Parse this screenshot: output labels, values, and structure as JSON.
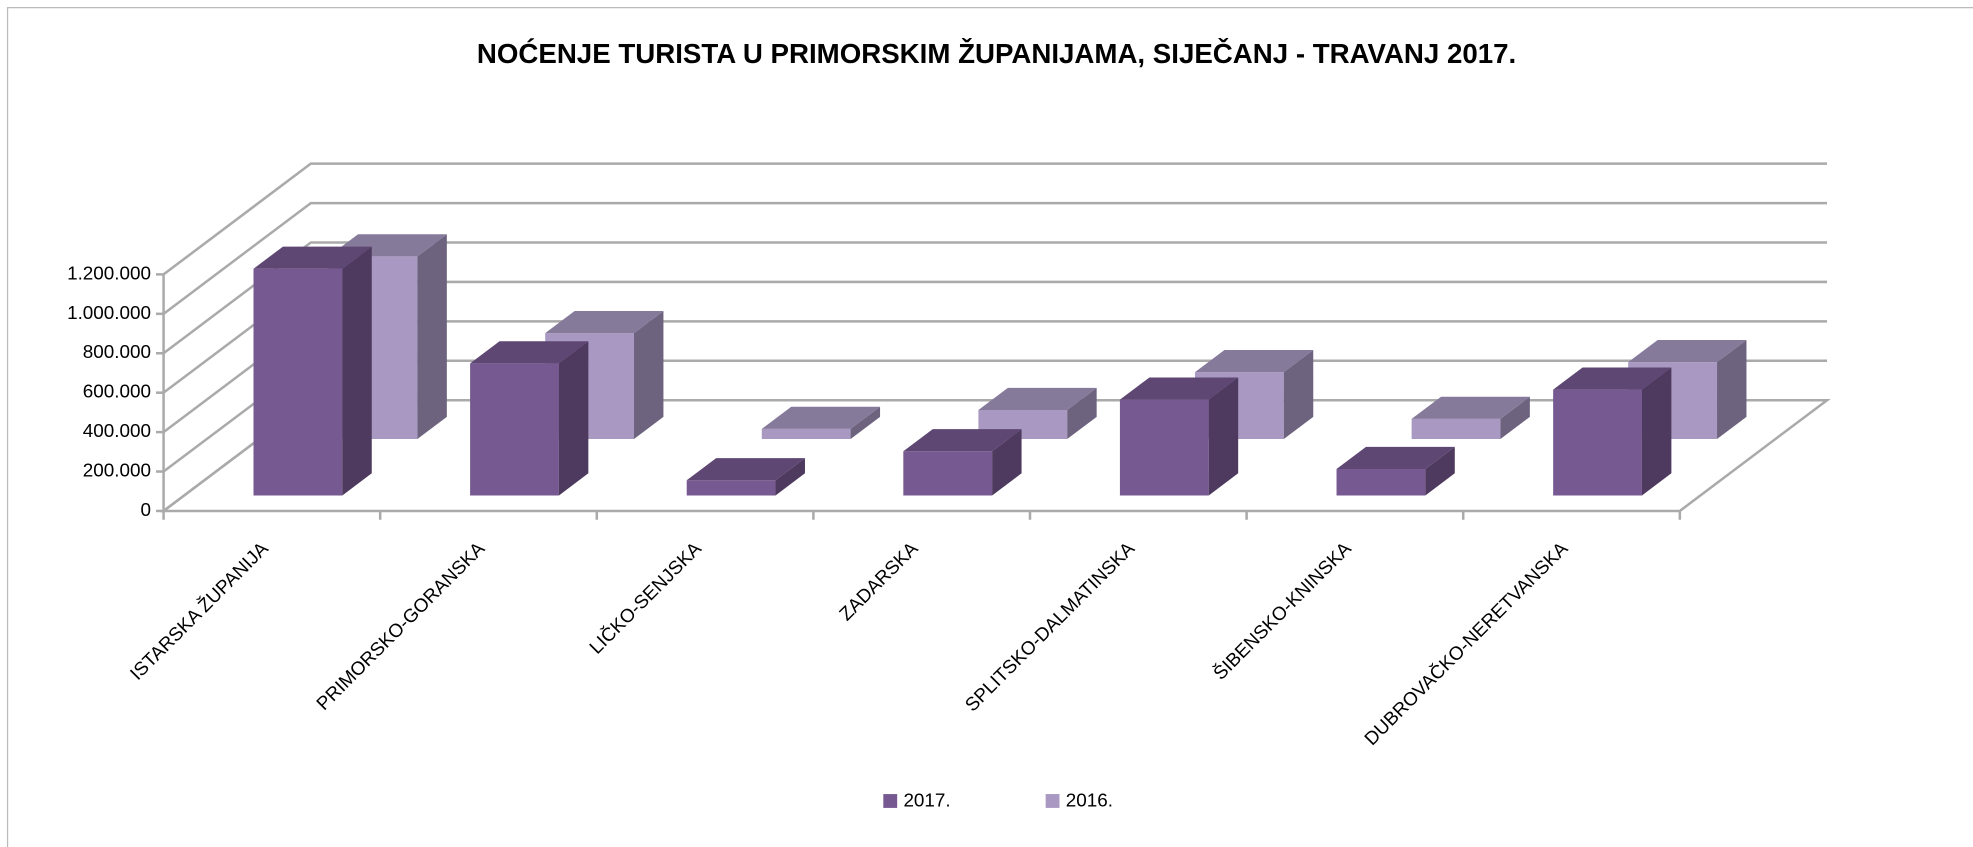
{
  "chart_data": {
    "type": "bar3d",
    "title": "NOĆENJE TURISTA U PRIMORSKIM ŽUPANIJAMA, SIJEČANJ - TRAVANJ 2017.",
    "categories": [
      "ISTARSKA ŽUPANIJA",
      "PRIMORSKO-GORANSKA",
      "LIČKO-SENJSKA",
      "ZADARSKA",
      "SPLITSKO-DALMATINSKA",
      "ŠIBENSKO-KNINSKA",
      "DUBROVAČKO-NERETVANSKA"
    ],
    "series": [
      {
        "name": "2017.",
        "color": "#765990",
        "values": [
          1150000,
          670000,
          77000,
          224000,
          486000,
          134000,
          537000
        ]
      },
      {
        "name": "2016.",
        "color": "#a898c2",
        "values": [
          926000,
          537000,
          51000,
          147000,
          339000,
          102000,
          390000
        ]
      }
    ],
    "ylim": [
      0,
      1200000
    ],
    "yticks": [
      0,
      {
        "value": 200000,
        "label": "200.000"
      },
      {
        "value": 400000,
        "label": "400.000"
      },
      {
        "value": 600000,
        "label": "600.000"
      },
      {
        "value": 800000,
        "label": "800.000"
      },
      {
        "value": 1000000,
        "label": "1.000.000"
      },
      {
        "value": 1200000,
        "label": "1.200.000"
      }
    ],
    "grid": true,
    "legend": "bottom"
  }
}
